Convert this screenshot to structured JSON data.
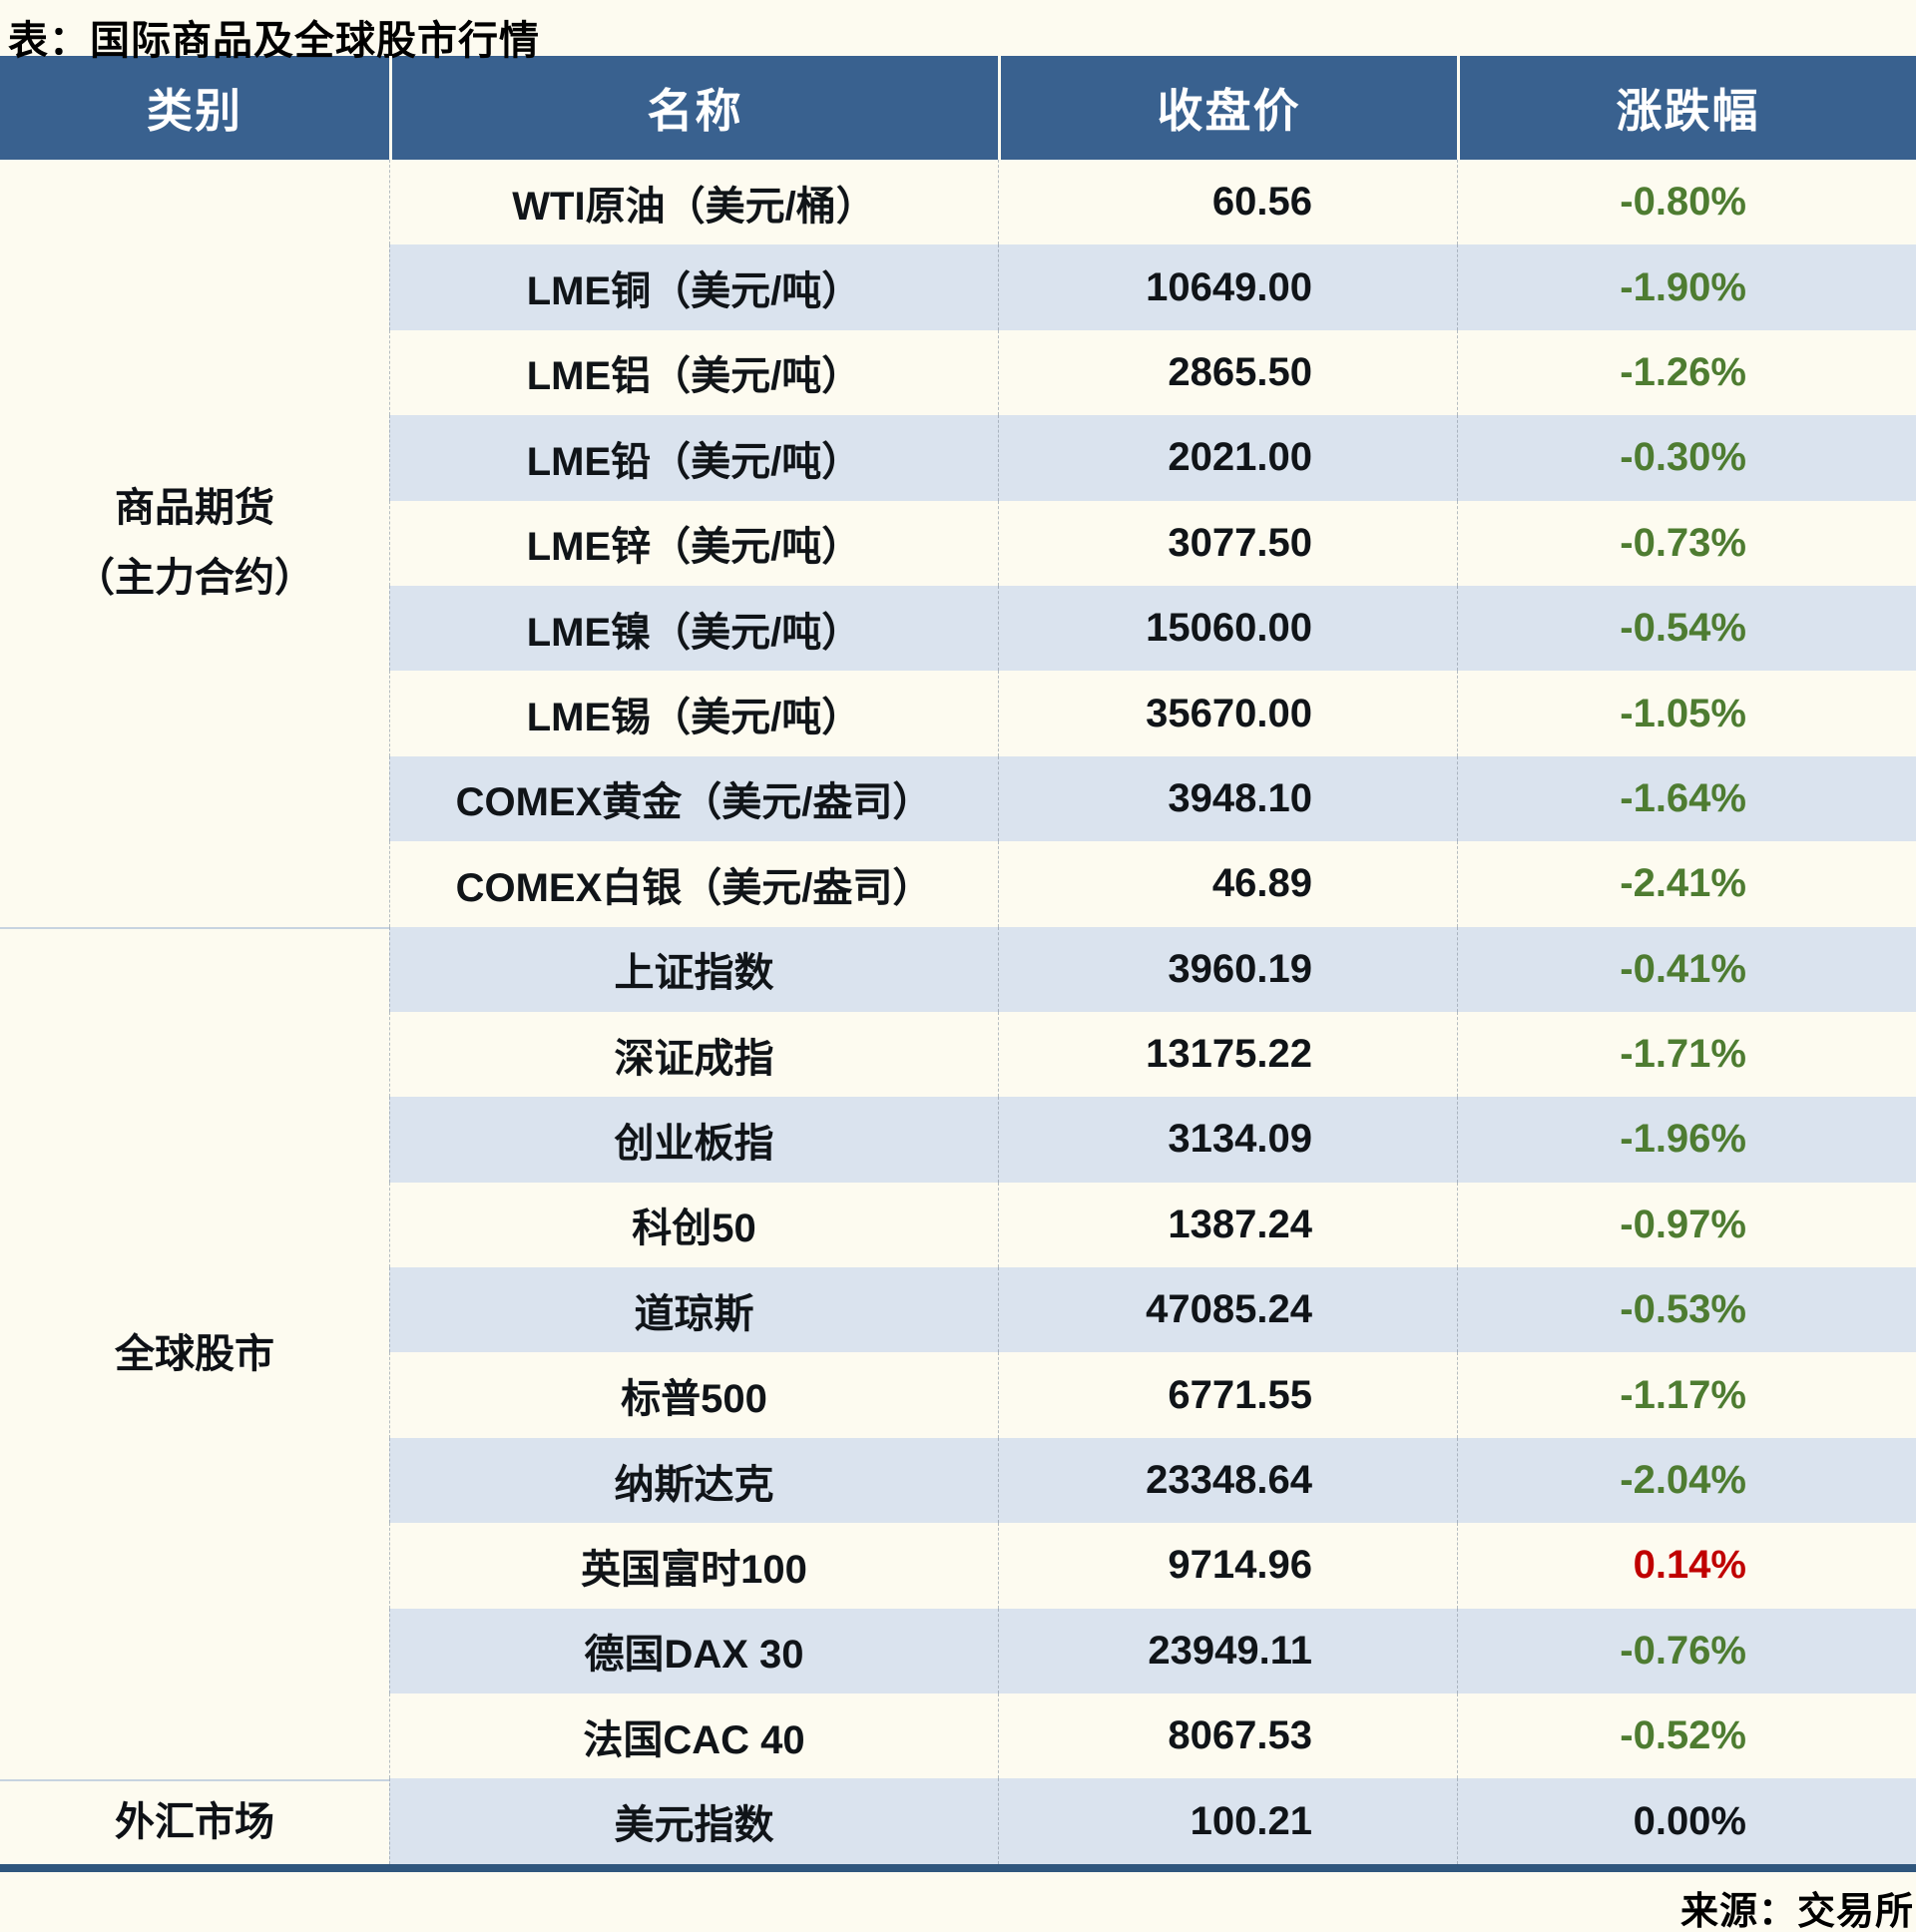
{
  "page": {
    "title": "表：国际商品及全球股市行情",
    "source_note": "来源：交易所"
  },
  "colors": {
    "header_bg": "#39618F",
    "stripe_bg": "#DAE3EE",
    "page_bg": "#FDFBF0",
    "decline_green": "#4E7C31",
    "gain_red": "#C00000",
    "neutral_black": "#101418",
    "bottom_bar_navy": "#2F567D"
  },
  "table": {
    "headers": [
      "类别",
      "名称",
      "收盘价",
      "涨跌幅"
    ],
    "sections": [
      {
        "label": "商品期货\n（主力合约）",
        "row_count": 9
      },
      {
        "label": "全球股市",
        "row_count": 10
      },
      {
        "label": "外汇市场",
        "row_count": 1
      }
    ],
    "rows": [
      {
        "name": "WTI原油（美元/桶）",
        "close": "60.56",
        "change": "-0.80%",
        "trend": "down"
      },
      {
        "name": "LME铜（美元/吨）",
        "close": "10649.00",
        "change": "-1.90%",
        "trend": "down"
      },
      {
        "name": "LME铝（美元/吨）",
        "close": "2865.50",
        "change": "-1.26%",
        "trend": "down"
      },
      {
        "name": "LME铅（美元/吨）",
        "close": "2021.00",
        "change": "-0.30%",
        "trend": "down"
      },
      {
        "name": "LME锌（美元/吨）",
        "close": "3077.50",
        "change": "-0.73%",
        "trend": "down"
      },
      {
        "name": "LME镍（美元/吨）",
        "close": "15060.00",
        "change": "-0.54%",
        "trend": "down"
      },
      {
        "name": "LME锡（美元/吨）",
        "close": "35670.00",
        "change": "-1.05%",
        "trend": "down"
      },
      {
        "name": "COMEX黄金（美元/盎司）",
        "close": "3948.10",
        "change": "-1.64%",
        "trend": "down"
      },
      {
        "name": "COMEX白银（美元/盎司）",
        "close": "46.89",
        "change": "-2.41%",
        "trend": "down"
      },
      {
        "name": "上证指数",
        "close": "3960.19",
        "change": "-0.41%",
        "trend": "down"
      },
      {
        "name": "深证成指",
        "close": "13175.22",
        "change": "-1.71%",
        "trend": "down"
      },
      {
        "name": "创业板指",
        "close": "3134.09",
        "change": "-1.96%",
        "trend": "down"
      },
      {
        "name": "科创50",
        "close": "1387.24",
        "change": "-0.97%",
        "trend": "down"
      },
      {
        "name": "道琼斯",
        "close": "47085.24",
        "change": "-0.53%",
        "trend": "down"
      },
      {
        "name": "标普500",
        "close": "6771.55",
        "change": "-1.17%",
        "trend": "down"
      },
      {
        "name": "纳斯达克",
        "close": "23348.64",
        "change": "-2.04%",
        "trend": "down"
      },
      {
        "name": "英国富时100",
        "close": "9714.96",
        "change": "0.14%",
        "trend": "up"
      },
      {
        "name": "德国DAX 30",
        "close": "23949.11",
        "change": "-0.76%",
        "trend": "down"
      },
      {
        "name": "法国CAC 40",
        "close": "8067.53",
        "change": "-0.52%",
        "trend": "down"
      },
      {
        "name": "美元指数",
        "close": "100.21",
        "change": "0.00%",
        "trend": "flat"
      }
    ]
  },
  "chart_data": {
    "type": "table",
    "title": "表：国际商品及全球股市行情",
    "columns": [
      "类别",
      "名称",
      "收盘价",
      "涨跌幅"
    ],
    "groups": [
      {
        "category": "商品期货（主力合约）",
        "items": [
          {
            "name": "WTI原油（美元/桶）",
            "close": 60.56,
            "change_pct": -0.8
          },
          {
            "name": "LME铜（美元/吨）",
            "close": 10649.0,
            "change_pct": -1.9
          },
          {
            "name": "LME铝（美元/吨）",
            "close": 2865.5,
            "change_pct": -1.26
          },
          {
            "name": "LME铅（美元/吨）",
            "close": 2021.0,
            "change_pct": -0.3
          },
          {
            "name": "LME锌（美元/吨）",
            "close": 3077.5,
            "change_pct": -0.73
          },
          {
            "name": "LME镍（美元/吨）",
            "close": 15060.0,
            "change_pct": -0.54
          },
          {
            "name": "LME锡（美元/吨）",
            "close": 35670.0,
            "change_pct": -1.05
          },
          {
            "name": "COMEX黄金（美元/盎司）",
            "close": 3948.1,
            "change_pct": -1.64
          },
          {
            "name": "COMEX白银（美元/盎司）",
            "close": 46.89,
            "change_pct": -2.41
          }
        ]
      },
      {
        "category": "全球股市",
        "items": [
          {
            "name": "上证指数",
            "close": 3960.19,
            "change_pct": -0.41
          },
          {
            "name": "深证成指",
            "close": 13175.22,
            "change_pct": -1.71
          },
          {
            "name": "创业板指",
            "close": 3134.09,
            "change_pct": -1.96
          },
          {
            "name": "科创50",
            "close": 1387.24,
            "change_pct": -0.97
          },
          {
            "name": "道琼斯",
            "close": 47085.24,
            "change_pct": -0.53
          },
          {
            "name": "标普500",
            "close": 6771.55,
            "change_pct": -1.17
          },
          {
            "name": "纳斯达克",
            "close": 23348.64,
            "change_pct": -2.04
          },
          {
            "name": "英国富时100",
            "close": 9714.96,
            "change_pct": 0.14
          },
          {
            "name": "德国DAX 30",
            "close": 23949.11,
            "change_pct": -0.76
          },
          {
            "name": "法国CAC 40",
            "close": 8067.53,
            "change_pct": -0.52
          }
        ]
      },
      {
        "category": "外汇市场",
        "items": [
          {
            "name": "美元指数",
            "close": 100.21,
            "change_pct": 0.0
          }
        ]
      }
    ],
    "style_notes": "declines rendered green, gains red, zero black; alternating white/light-blue row stripes",
    "source": "来源：交易所"
  }
}
